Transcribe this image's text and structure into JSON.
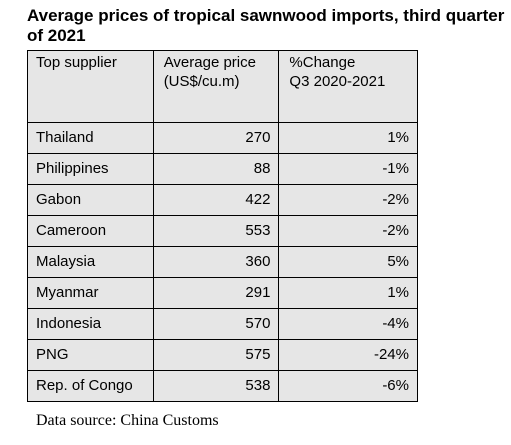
{
  "title": "Average prices of tropical sawnwood imports, third quarter of 2021",
  "table": {
    "headers": {
      "supplier": "Top supplier",
      "price_line1": "Average price",
      "price_line2": "(US$/cu.m)",
      "change_line1": "%Change",
      "change_line2": "Q3 2020-2021"
    },
    "rows": [
      {
        "supplier": "Thailand",
        "price": "270",
        "change": "1%"
      },
      {
        "supplier": "Philippines",
        "price": "88",
        "change": "-1%"
      },
      {
        "supplier": "Gabon",
        "price": "422",
        "change": "-2%"
      },
      {
        "supplier": "Cameroon",
        "price": "553",
        "change": "-2%"
      },
      {
        "supplier": "Malaysia",
        "price": "360",
        "change": "5%"
      },
      {
        "supplier": "Myanmar",
        "price": "291",
        "change": "1%"
      },
      {
        "supplier": "Indonesia",
        "price": "570",
        "change": "-4%"
      },
      {
        "supplier": "PNG",
        "price": "575",
        "change": "-24%"
      },
      {
        "supplier": "Rep. of Congo",
        "price": "538",
        "change": "-6%"
      }
    ]
  },
  "source": "Data source: China Customs"
}
